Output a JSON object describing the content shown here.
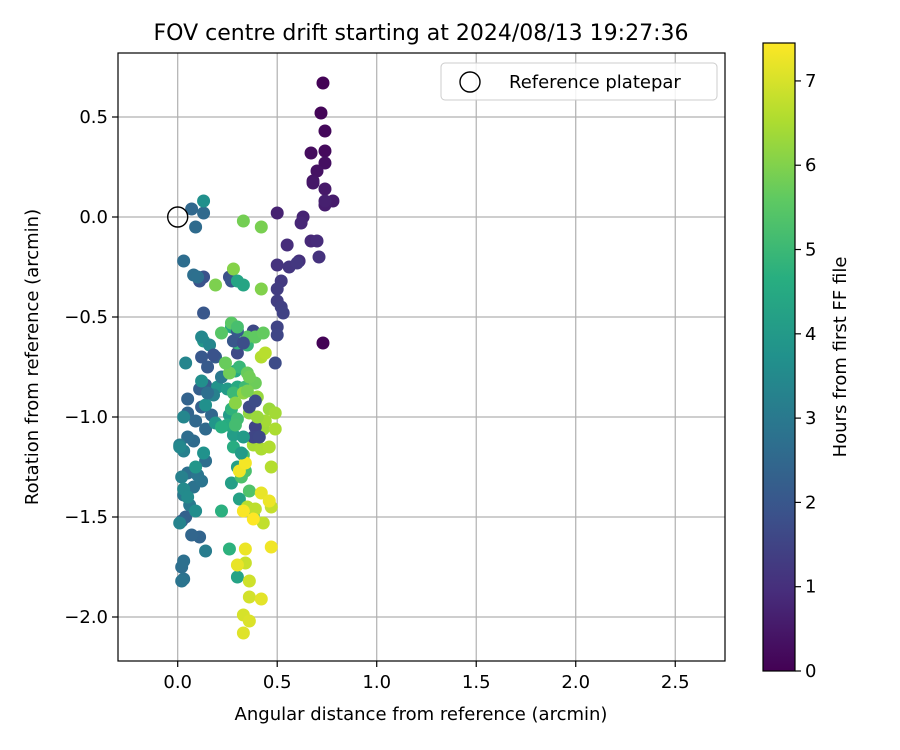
{
  "chart_data": {
    "type": "scatter",
    "title": "FOV centre drift starting at 2024/08/13 19:27:36",
    "xlabel": "Angular distance from reference (arcmin)",
    "ylabel": "Rotation from reference (arcmin)",
    "xlim": [
      -0.3,
      2.75
    ],
    "ylim": [
      -2.22,
      0.82
    ],
    "xticks": [
      0.0,
      0.5,
      1.0,
      1.5,
      2.0,
      2.5
    ],
    "xtick_labels": [
      "0.0",
      "0.5",
      "1.0",
      "1.5",
      "2.0",
      "2.5"
    ],
    "yticks": [
      0.5,
      0.0,
      -0.5,
      -1.0,
      -1.5,
      -2.0
    ],
    "ytick_labels": [
      "0.5",
      "0.0",
      "−0.5",
      "−1.0",
      "−1.5",
      "−2.0"
    ],
    "grid": true,
    "legend": {
      "position": "top-right",
      "label": "Reference platepar"
    },
    "reference_point": [
      0.0,
      0.0
    ],
    "colorbar": {
      "label": "Hours from first FF file",
      "range": [
        0,
        7.45
      ],
      "ticks": [
        0,
        1,
        2,
        3,
        4,
        5,
        6,
        7
      ],
      "tick_labels": [
        "0",
        "1",
        "2",
        "3",
        "4",
        "5",
        "6",
        "7"
      ],
      "colormap": "viridis"
    },
    "points": [
      [
        0.73,
        0.67,
        0.05
      ],
      [
        0.72,
        0.52,
        0.1
      ],
      [
        0.74,
        0.43,
        0.15
      ],
      [
        0.74,
        0.33,
        0.2
      ],
      [
        0.67,
        0.32,
        0.25
      ],
      [
        0.74,
        0.27,
        0.3
      ],
      [
        0.7,
        0.23,
        0.35
      ],
      [
        0.68,
        0.18,
        0.4
      ],
      [
        0.68,
        0.17,
        0.45
      ],
      [
        0.74,
        0.14,
        0.5
      ],
      [
        0.78,
        0.08,
        0.55
      ],
      [
        0.74,
        0.06,
        0.6
      ],
      [
        0.74,
        0.08,
        0.65
      ],
      [
        0.5,
        0.02,
        0.7
      ],
      [
        0.63,
        0.0,
        0.75
      ],
      [
        0.62,
        -0.03,
        0.8
      ],
      [
        0.67,
        -0.12,
        0.85
      ],
      [
        0.7,
        -0.12,
        0.9
      ],
      [
        0.55,
        -0.14,
        0.95
      ],
      [
        0.61,
        -0.22,
        1.0
      ],
      [
        0.71,
        -0.2,
        1.05
      ],
      [
        0.5,
        -0.24,
        1.1
      ],
      [
        0.56,
        -0.25,
        1.15
      ],
      [
        0.6,
        -0.23,
        1.2
      ],
      [
        0.52,
        -0.32,
        1.25
      ],
      [
        0.5,
        -0.36,
        1.3
      ],
      [
        0.5,
        -0.42,
        1.35
      ],
      [
        0.52,
        -0.45,
        1.4
      ],
      [
        0.53,
        -0.48,
        1.45
      ],
      [
        0.5,
        -0.55,
        1.5
      ],
      [
        0.5,
        -0.59,
        1.55
      ],
      [
        0.38,
        -0.57,
        1.6
      ],
      [
        0.3,
        -0.68,
        1.65
      ],
      [
        0.49,
        -0.73,
        1.7
      ],
      [
        0.73,
        -0.63,
        0.05
      ],
      [
        0.26,
        -0.3,
        1.8
      ],
      [
        0.13,
        -0.3,
        1.85
      ],
      [
        0.11,
        -0.32,
        1.9
      ],
      [
        0.27,
        -0.32,
        1.95
      ],
      [
        0.13,
        -0.48,
        2.0
      ],
      [
        0.12,
        -0.7,
        2.05
      ],
      [
        0.15,
        -0.75,
        2.1
      ],
      [
        0.19,
        -0.7,
        2.15
      ],
      [
        0.14,
        -0.84,
        2.2
      ],
      [
        0.11,
        -0.86,
        2.25
      ],
      [
        0.12,
        -0.95,
        2.3
      ],
      [
        0.05,
        -0.91,
        2.35
      ],
      [
        0.05,
        -0.98,
        2.4
      ],
      [
        0.17,
        -0.99,
        2.45
      ],
      [
        0.09,
        -1.02,
        2.5
      ],
      [
        0.14,
        -1.06,
        2.55
      ],
      [
        0.08,
        -1.12,
        2.6
      ],
      [
        0.05,
        -1.1,
        2.65
      ],
      [
        0.14,
        -1.22,
        2.7
      ],
      [
        0.05,
        -1.28,
        2.75
      ],
      [
        0.08,
        -1.35,
        2.8
      ],
      [
        0.12,
        -1.32,
        2.85
      ],
      [
        0.1,
        -1.29,
        2.9
      ],
      [
        0.03,
        -1.39,
        2.95
      ],
      [
        0.06,
        -1.44,
        3.0
      ],
      [
        0.04,
        -1.5,
        2.3
      ],
      [
        0.02,
        -1.52,
        2.35
      ],
      [
        0.11,
        -1.6,
        2.4
      ],
      [
        0.07,
        -1.59,
        2.45
      ],
      [
        0.02,
        -1.75,
        2.7
      ],
      [
        0.03,
        -1.72,
        2.75
      ],
      [
        0.03,
        -1.81,
        2.8
      ],
      [
        0.02,
        -1.82,
        2.85
      ],
      [
        0.07,
        0.04,
        2.5
      ],
      [
        0.13,
        0.02,
        2.55
      ],
      [
        0.09,
        -0.05,
        2.6
      ],
      [
        0.03,
        -0.22,
        2.65
      ],
      [
        0.08,
        -0.29,
        2.7
      ],
      [
        0.1,
        -0.3,
        2.75
      ],
      [
        0.13,
        0.08,
        3.7
      ],
      [
        0.14,
        -1.67,
        3.1
      ],
      [
        0.01,
        -1.14,
        3.15
      ],
      [
        0.03,
        -1.17,
        3.2
      ],
      [
        0.02,
        -1.3,
        3.25
      ],
      [
        0.01,
        -1.53,
        3.3
      ],
      [
        0.04,
        -0.73,
        3.35
      ],
      [
        0.03,
        -1.0,
        3.4
      ],
      [
        0.01,
        -1.15,
        3.45
      ],
      [
        0.03,
        -1.36,
        3.5
      ],
      [
        0.05,
        -1.4,
        3.55
      ],
      [
        0.09,
        -1.47,
        3.6
      ],
      [
        0.12,
        -0.82,
        3.65
      ],
      [
        0.14,
        -0.94,
        3.7
      ],
      [
        0.13,
        -1.18,
        3.75
      ],
      [
        0.2,
        -0.85,
        3.8
      ],
      [
        0.19,
        -1.03,
        3.85
      ],
      [
        0.09,
        -1.25,
        3.9
      ],
      [
        0.13,
        -0.62,
        3.95
      ],
      [
        0.25,
        -0.86,
        4.0
      ],
      [
        0.26,
        -0.99,
        4.05
      ],
      [
        0.28,
        -1.09,
        4.1
      ],
      [
        0.27,
        -1.33,
        4.15
      ],
      [
        0.3,
        -1.25,
        4.2
      ],
      [
        0.31,
        -1.41,
        4.25
      ],
      [
        0.3,
        -1.8,
        4.3
      ],
      [
        0.33,
        -0.34,
        4.35
      ],
      [
        0.27,
        -0.55,
        4.4
      ],
      [
        0.29,
        -0.77,
        4.45
      ],
      [
        0.3,
        -0.85,
        4.5
      ],
      [
        0.25,
        -1.04,
        4.55
      ],
      [
        0.28,
        -1.15,
        4.6
      ],
      [
        0.22,
        -1.05,
        4.65
      ],
      [
        0.22,
        -1.47,
        4.7
      ],
      [
        0.26,
        -1.66,
        4.75
      ],
      [
        0.27,
        -0.96,
        4.8
      ],
      [
        0.3,
        -0.63,
        4.85
      ],
      [
        0.35,
        -0.64,
        4.9
      ],
      [
        0.31,
        -0.75,
        4.95
      ],
      [
        0.28,
        -0.88,
        5.0
      ],
      [
        0.34,
        -0.85,
        5.05
      ],
      [
        0.3,
        -1.01,
        5.1
      ],
      [
        0.29,
        -1.04,
        5.15
      ],
      [
        0.33,
        -1.19,
        5.2
      ],
      [
        0.34,
        -1.27,
        5.25
      ],
      [
        0.32,
        -1.3,
        5.3
      ],
      [
        0.36,
        -1.37,
        5.35
      ],
      [
        0.38,
        -1.49,
        5.4
      ],
      [
        0.22,
        -0.58,
        5.45
      ],
      [
        0.27,
        -0.53,
        5.5
      ],
      [
        0.35,
        -0.6,
        5.55
      ],
      [
        0.39,
        -0.6,
        5.6
      ],
      [
        0.43,
        -0.58,
        5.65
      ],
      [
        0.35,
        -0.78,
        5.7
      ],
      [
        0.39,
        -0.83,
        5.75
      ],
      [
        0.36,
        -0.8,
        5.8
      ],
      [
        0.33,
        -0.02,
        5.85
      ],
      [
        0.42,
        -0.05,
        5.9
      ],
      [
        0.19,
        -0.34,
        5.95
      ],
      [
        0.42,
        -0.36,
        6.0
      ],
      [
        0.28,
        -0.26,
        6.05
      ],
      [
        0.29,
        -0.93,
        6.1
      ],
      [
        0.33,
        -0.88,
        6.15
      ],
      [
        0.36,
        -0.98,
        6.2
      ],
      [
        0.4,
        -0.9,
        6.25
      ],
      [
        0.46,
        -0.96,
        6.3
      ],
      [
        0.43,
        -1.06,
        6.35
      ],
      [
        0.44,
        -1.02,
        6.4
      ],
      [
        0.38,
        -1.14,
        6.45
      ],
      [
        0.42,
        -1.16,
        6.5
      ],
      [
        0.46,
        -1.15,
        6.55
      ],
      [
        0.47,
        -1.25,
        6.6
      ],
      [
        0.35,
        -1.45,
        6.65
      ],
      [
        0.39,
        -1.46,
        6.7
      ],
      [
        0.43,
        -1.53,
        6.75
      ],
      [
        0.47,
        -1.45,
        6.8
      ],
      [
        0.34,
        -1.73,
        6.85
      ],
      [
        0.36,
        -1.82,
        6.9
      ],
      [
        0.36,
        -1.9,
        6.95
      ],
      [
        0.33,
        -1.99,
        7.0
      ],
      [
        0.36,
        -2.02,
        7.05
      ],
      [
        0.33,
        -2.08,
        7.1
      ],
      [
        0.42,
        -1.91,
        7.15
      ],
      [
        0.3,
        -1.74,
        7.2
      ],
      [
        0.34,
        -1.66,
        7.25
      ],
      [
        0.31,
        -1.27,
        7.3
      ],
      [
        0.34,
        -1.23,
        7.35
      ],
      [
        0.33,
        -1.47,
        7.4
      ],
      [
        0.38,
        -1.51,
        7.45
      ],
      [
        0.42,
        -1.38,
        7.2
      ],
      [
        0.46,
        -1.42,
        7.25
      ],
      [
        0.47,
        -1.65,
        7.3
      ],
      [
        0.42,
        -0.7,
        6.6
      ],
      [
        0.44,
        -0.68,
        6.65
      ],
      [
        0.49,
        -0.98,
        6.4
      ],
      [
        0.49,
        -1.06,
        6.5
      ],
      [
        0.3,
        -0.32,
        4.35
      ],
      [
        0.22,
        -0.8,
        3.0
      ],
      [
        0.18,
        -0.89,
        3.25
      ],
      [
        0.16,
        -0.64,
        3.4
      ],
      [
        0.12,
        -0.6,
        3.45
      ],
      [
        0.15,
        -0.88,
        2.7
      ],
      [
        0.18,
        -0.69,
        1.9
      ],
      [
        0.28,
        -0.62,
        2.0
      ],
      [
        0.3,
        -0.57,
        2.1
      ],
      [
        0.33,
        -0.63,
        1.75
      ],
      [
        0.39,
        -1.05,
        1.5
      ],
      [
        0.38,
        -1.1,
        1.55
      ],
      [
        0.41,
        -1.1,
        1.6
      ],
      [
        0.36,
        -0.95,
        1.65
      ],
      [
        0.39,
        -0.92,
        1.7
      ],
      [
        0.33,
        -1.1,
        4.0
      ],
      [
        0.32,
        -1.18,
        4.05
      ],
      [
        0.3,
        -0.55,
        5.2
      ],
      [
        0.35,
        -0.87,
        5.9
      ],
      [
        0.4,
        -1.0,
        6.3
      ],
      [
        0.26,
        -0.78,
        5.8
      ],
      [
        0.24,
        -0.73,
        5.7
      ]
    ]
  }
}
